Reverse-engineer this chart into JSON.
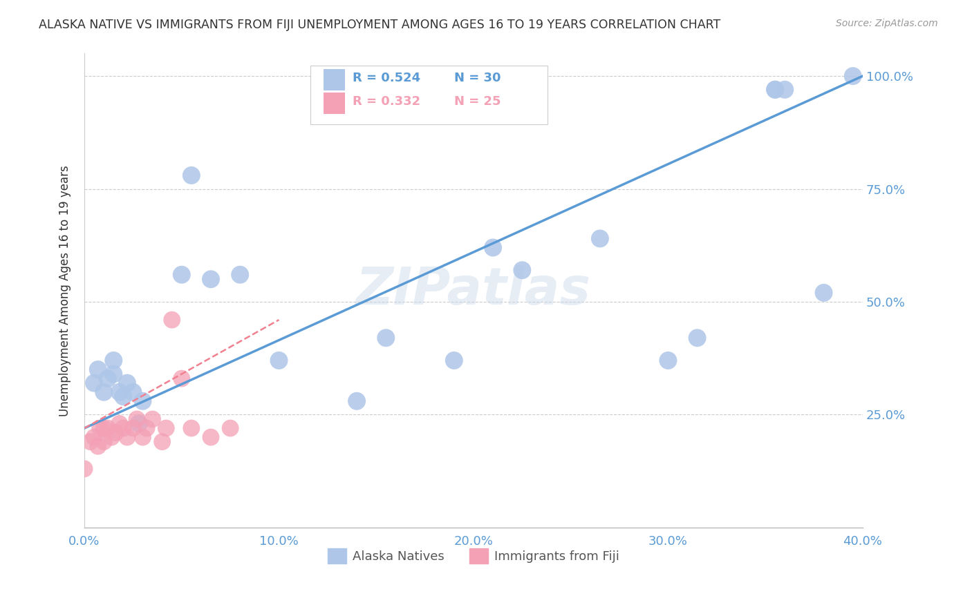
{
  "title": "ALASKA NATIVE VS IMMIGRANTS FROM FIJI UNEMPLOYMENT AMONG AGES 16 TO 19 YEARS CORRELATION CHART",
  "source": "Source: ZipAtlas.com",
  "ylabel_label": "Unemployment Among Ages 16 to 19 years",
  "xmin": 0.0,
  "xmax": 0.4,
  "ymin": 0.0,
  "ymax": 1.05,
  "xtick_labels": [
    "0.0%",
    "10.0%",
    "20.0%",
    "30.0%",
    "40.0%"
  ],
  "xtick_values": [
    0.0,
    0.1,
    0.2,
    0.3,
    0.4
  ],
  "ytick_labels": [
    "25.0%",
    "50.0%",
    "75.0%",
    "100.0%"
  ],
  "ytick_values": [
    0.25,
    0.5,
    0.75,
    1.0
  ],
  "alaska_R": 0.524,
  "alaska_N": 30,
  "fiji_R": 0.332,
  "fiji_N": 25,
  "alaska_color": "#aec6e8",
  "fiji_color": "#f4a0b5",
  "alaska_line_color": "#5b9bd5",
  "fiji_line_color": "#f08090",
  "diagonal_color": "#d0d0d0",
  "watermark": "ZIPatlas",
  "alaska_line": [
    0.0,
    0.22,
    0.4,
    1.0
  ],
  "fiji_line": [
    0.0,
    0.22,
    0.1,
    0.46
  ],
  "alaska_scatter_x": [
    0.005,
    0.007,
    0.01,
    0.012,
    0.015,
    0.015,
    0.018,
    0.02,
    0.022,
    0.025,
    0.028,
    0.03,
    0.05,
    0.055,
    0.065,
    0.08,
    0.1,
    0.14,
    0.155,
    0.19,
    0.21,
    0.225,
    0.265,
    0.3,
    0.315,
    0.355,
    0.355,
    0.36,
    0.38,
    0.395
  ],
  "alaska_scatter_y": [
    0.32,
    0.35,
    0.3,
    0.33,
    0.34,
    0.37,
    0.3,
    0.29,
    0.32,
    0.3,
    0.23,
    0.28,
    0.56,
    0.78,
    0.55,
    0.56,
    0.37,
    0.28,
    0.42,
    0.37,
    0.62,
    0.57,
    0.64,
    0.37,
    0.42,
    0.97,
    0.97,
    0.97,
    0.52,
    1.0
  ],
  "fiji_scatter_x": [
    0.0,
    0.003,
    0.005,
    0.007,
    0.008,
    0.01,
    0.01,
    0.012,
    0.014,
    0.016,
    0.018,
    0.02,
    0.022,
    0.025,
    0.027,
    0.03,
    0.032,
    0.035,
    0.04,
    0.042,
    0.045,
    0.05,
    0.055,
    0.065,
    0.075
  ],
  "fiji_scatter_y": [
    0.13,
    0.19,
    0.2,
    0.18,
    0.22,
    0.19,
    0.22,
    0.22,
    0.2,
    0.21,
    0.23,
    0.22,
    0.2,
    0.22,
    0.24,
    0.2,
    0.22,
    0.24,
    0.19,
    0.22,
    0.46,
    0.33,
    0.22,
    0.2,
    0.22
  ]
}
